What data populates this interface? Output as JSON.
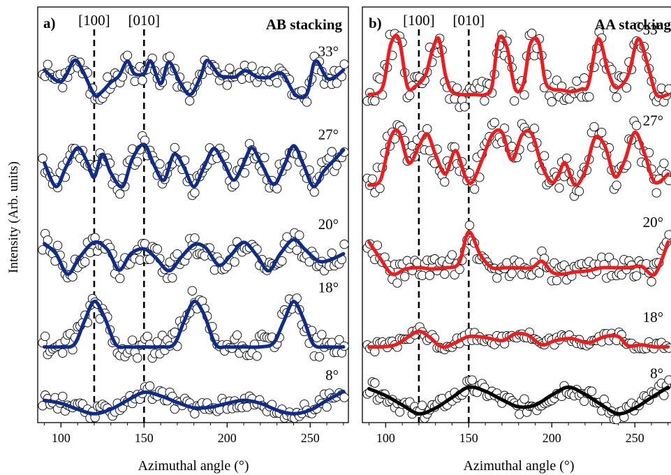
{
  "figure": {
    "ylabel": "Intensity (Arb. units)"
  },
  "chart_data": [
    {
      "type": "line",
      "panel": "a)",
      "title": "AB stacking",
      "xlabel": "Azimuthal angle (°)",
      "ylabel": "Intensity (Arb. units)",
      "xlim": [
        86,
        273
      ],
      "ylim": [
        0,
        5.6
      ],
      "xticks": [
        100,
        150,
        200,
        250
      ],
      "reference_lines": [
        {
          "label": "[100]",
          "x": 120
        },
        {
          "label": "[010]",
          "x": 150
        }
      ],
      "fit_color": "#0d2c8c",
      "marker": "open-circle",
      "series": [
        {
          "twist": "33°",
          "offset": 4.42,
          "amplitude": 0.46,
          "x": [
            90,
            100,
            108,
            113,
            120,
            124,
            130,
            135,
            140,
            144,
            150,
            154,
            160,
            165,
            172,
            178,
            184,
            188,
            195,
            200,
            205,
            211,
            218,
            225,
            233,
            241,
            248,
            253,
            260,
            265,
            270
          ],
          "y": [
            0.72,
            0.38,
            1.0,
            0.7,
            0.0,
            0.05,
            0.36,
            0.55,
            0.98,
            0.62,
            0.62,
            0.98,
            0.32,
            0.95,
            0.32,
            0.0,
            0.52,
            1.0,
            0.58,
            0.52,
            0.52,
            0.7,
            0.52,
            0.5,
            0.62,
            0.0,
            0.02,
            0.98,
            0.48,
            0.52,
            0.72
          ]
        },
        {
          "twist": "27°",
          "offset": 3.18,
          "amplitude": 0.58,
          "x": [
            90,
            97,
            103,
            110,
            116,
            120,
            125,
            130,
            137,
            143,
            150,
            156,
            162,
            168,
            174,
            180,
            186,
            192,
            198,
            204,
            210,
            215,
            221,
            228,
            234,
            240,
            246,
            252,
            258,
            264,
            270
          ],
          "y": [
            0.55,
            0.0,
            0.45,
            0.9,
            0.55,
            0.22,
            0.75,
            0.32,
            0.0,
            0.65,
            0.98,
            0.5,
            0.15,
            0.75,
            0.45,
            0.0,
            0.45,
            0.88,
            0.55,
            0.15,
            0.55,
            0.9,
            0.5,
            0.05,
            0.45,
            0.95,
            0.5,
            0.0,
            0.35,
            0.6,
            0.85
          ]
        },
        {
          "twist": "20°",
          "offset": 2.0,
          "amplitude": 0.55,
          "x": [
            90,
            97,
            104,
            111,
            120,
            128,
            135,
            142,
            150,
            157,
            165,
            172,
            180,
            187,
            195,
            202,
            210,
            218,
            225,
            232,
            240,
            247,
            255,
            262,
            270
          ],
          "y": [
            0.75,
            0.5,
            0.0,
            0.4,
            0.78,
            0.6,
            0.1,
            0.5,
            0.62,
            0.4,
            0.08,
            0.4,
            0.72,
            0.65,
            0.22,
            0.45,
            0.78,
            0.45,
            0.08,
            0.5,
            0.85,
            0.6,
            0.32,
            0.35,
            0.5
          ]
        },
        {
          "twist": "18°",
          "offset": 1.02,
          "amplitude": 0.68,
          "x": [
            90,
            100,
            108,
            114,
            120,
            126,
            133,
            140,
            150,
            160,
            168,
            174,
            180,
            186,
            193,
            200,
            210,
            220,
            228,
            234,
            240,
            246,
            252,
            260,
            270
          ],
          "y": [
            0.0,
            0.0,
            0.05,
            0.5,
            0.9,
            0.6,
            0.05,
            0.0,
            0.0,
            0.0,
            0.05,
            0.5,
            0.9,
            0.65,
            0.05,
            0.0,
            0.0,
            0.0,
            0.08,
            0.5,
            0.9,
            0.55,
            0.05,
            0.0,
            0.0
          ]
        },
        {
          "twist": "8°",
          "offset": 0.12,
          "amplitude": 0.4,
          "x": [
            90,
            100,
            110,
            120,
            130,
            140,
            150,
            160,
            170,
            180,
            190,
            200,
            210,
            220,
            230,
            240,
            250,
            260,
            270
          ],
          "y": [
            0.45,
            0.35,
            0.15,
            0.0,
            0.15,
            0.45,
            0.72,
            0.6,
            0.38,
            0.2,
            0.22,
            0.35,
            0.45,
            0.35,
            0.12,
            0.0,
            0.12,
            0.45,
            0.75
          ]
        }
      ]
    },
    {
      "type": "line",
      "panel": "b)",
      "title": "AA stacking",
      "xlabel": "Azimuthal angle (°)",
      "ylabel": "Intensity (Arb. units)",
      "xlim": [
        86,
        273
      ],
      "ylim": [
        0,
        5.6
      ],
      "xticks": [
        100,
        150,
        200,
        250
      ],
      "reference_lines": [
        {
          "label": "[100]",
          "x": 120
        },
        {
          "label": "[010]",
          "x": 150
        }
      ],
      "fit_color": "#ee1c1c",
      "marker": "open-circle",
      "series": [
        {
          "twist": "33°",
          "offset": 4.42,
          "amplitude": 0.75,
          "x": [
            90,
            98,
            103,
            108,
            113,
            118,
            124,
            128,
            132,
            136,
            140,
            146,
            150,
            154,
            160,
            164,
            168,
            173,
            178,
            183,
            187,
            192,
            196,
            200,
            206,
            212,
            218,
            222,
            228,
            234,
            239,
            246,
            252,
            258,
            263,
            270
          ],
          "y": [
            0.0,
            0.12,
            0.9,
            1.0,
            0.15,
            0.15,
            0.35,
            0.78,
            1.0,
            0.35,
            0.05,
            0.0,
            0.0,
            0.0,
            0.0,
            0.15,
            1.0,
            0.85,
            0.1,
            0.2,
            0.9,
            0.95,
            0.25,
            0.1,
            0.08,
            0.05,
            0.1,
            0.18,
            1.0,
            0.4,
            0.12,
            0.35,
            1.0,
            0.5,
            0.0,
            0.0
          ]
        },
        {
          "twist": "27°",
          "offset": 3.2,
          "amplitude": 0.75,
          "x": [
            90,
            97,
            103,
            108,
            114,
            120,
            125,
            130,
            136,
            142,
            148,
            152,
            158,
            164,
            170,
            176,
            182,
            188,
            194,
            200,
            204,
            208,
            214,
            220,
            226,
            232,
            238,
            244,
            250,
            256,
            262,
            270
          ],
          "y": [
            0.0,
            0.1,
            0.85,
            0.95,
            0.4,
            0.7,
            0.92,
            0.55,
            0.2,
            0.62,
            0.15,
            0.05,
            0.45,
            0.9,
            0.95,
            0.45,
            0.9,
            0.92,
            0.35,
            0.05,
            0.18,
            0.4,
            0.0,
            0.25,
            0.85,
            0.7,
            0.15,
            0.45,
            0.95,
            0.55,
            0.05,
            0.2
          ]
        },
        {
          "twist": "20°",
          "offset": 2.0,
          "amplitude": 0.58,
          "x": [
            90,
            97,
            104,
            112,
            120,
            128,
            136,
            144,
            150,
            157,
            164,
            172,
            180,
            188,
            194,
            200,
            206,
            214,
            222,
            230,
            238,
            246,
            254,
            262,
            270
          ],
          "y": [
            0.75,
            0.35,
            0.0,
            0.12,
            0.15,
            0.12,
            0.15,
            0.25,
            0.98,
            0.45,
            0.15,
            0.15,
            0.15,
            0.15,
            0.3,
            0.05,
            0.0,
            0.05,
            0.08,
            0.15,
            0.15,
            0.15,
            0.18,
            0.0,
            0.75
          ]
        },
        {
          "twist": "18°",
          "offset": 1.02,
          "amplitude": 0.28,
          "x": [
            90,
            98,
            106,
            114,
            120,
            126,
            134,
            142,
            150,
            160,
            170,
            176,
            180,
            186,
            194,
            202,
            212,
            222,
            232,
            240,
            246,
            254,
            262,
            270
          ],
          "y": [
            0.0,
            0.0,
            0.1,
            0.5,
            0.75,
            0.5,
            0.0,
            0.2,
            0.5,
            0.45,
            0.3,
            0.55,
            0.65,
            0.55,
            0.1,
            0.3,
            0.4,
            0.2,
            0.5,
            0.5,
            0.05,
            0.1,
            0.0,
            0.0
          ]
        },
        {
          "twist": "8°",
          "offset": 0.12,
          "amplitude": 0.42,
          "x": [
            90,
            100,
            110,
            120,
            130,
            140,
            150,
            160,
            170,
            180,
            190,
            200,
            210,
            220,
            230,
            240,
            250,
            260,
            270
          ],
          "y": [
            0.8,
            0.58,
            0.28,
            0.0,
            0.18,
            0.52,
            0.85,
            0.72,
            0.45,
            0.22,
            0.28,
            0.6,
            0.85,
            0.62,
            0.28,
            0.0,
            0.18,
            0.52,
            0.85
          ]
        }
      ]
    }
  ]
}
